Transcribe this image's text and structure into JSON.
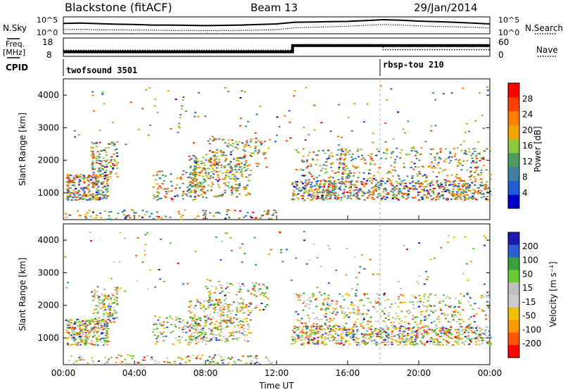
{
  "header": {
    "station": "Blackstone (fitACF)",
    "beam": "Beam 13",
    "date": "29/Jan/2014"
  },
  "left_labels": {
    "nsky": "N.Sky",
    "freq_line1": "Freq.",
    "freq_line2": "[MHz]",
    "cpid": "CPID"
  },
  "right_labels": {
    "nsearch": "N.Search",
    "nave": "Nave"
  },
  "cpid_segments": [
    "twofsound 3501",
    "rbsp-tou 210"
  ],
  "colors": {
    "power_scale": [
      "#0000cc",
      "#1f5fd6",
      "#3f7fa0",
      "#4e9a60",
      "#8ec63f",
      "#f2a400",
      "#ff7d00",
      "#ff4000",
      "#ff0000"
    ],
    "velocity_scale": [
      "#1a1ab0",
      "#2b5fd0",
      "#3aa03a",
      "#66cc33",
      "#bfbfbf",
      "#cccccc",
      "#f0c000",
      "#ff9900",
      "#ff5500",
      "#ff0000"
    ]
  },
  "chart_data": [
    {
      "type": "line",
      "panel": "noise",
      "y_left_ticks": [
        "10^5",
        "10^0"
      ],
      "y_right_ticks": [
        "10^5",
        "10^0"
      ],
      "series": [
        {
          "name": "N.Sky",
          "style": "solid",
          "x_hours": [
            0,
            1,
            2,
            3,
            4,
            5,
            6,
            7,
            8,
            9,
            10,
            11,
            12,
            13,
            14,
            15,
            16,
            17,
            18,
            19,
            20,
            21,
            22,
            23,
            24
          ],
          "values_log10": [
            3.2,
            3.3,
            3.1,
            2.9,
            2.8,
            2.6,
            2.6,
            2.5,
            2.4,
            2.5,
            2.6,
            2.8,
            3.0,
            3.6,
            3.7,
            3.8,
            3.9,
            4.2,
            4.5,
            4.3,
            4.0,
            3.8,
            3.6,
            3.3,
            3.0
          ]
        },
        {
          "name": "N.Search",
          "style": "dotted",
          "x_hours": [
            0,
            1,
            2,
            3,
            4,
            5,
            6,
            7,
            8,
            9,
            10,
            11,
            12,
            13,
            14,
            15,
            16,
            17,
            18,
            19,
            20,
            21,
            22,
            23,
            24
          ],
          "values_log10": [
            1.0,
            1.1,
            0.9,
            0.9,
            0.8,
            0.8,
            0.7,
            0.7,
            0.6,
            0.7,
            0.7,
            0.8,
            1.0,
            1.6,
            1.8,
            2.0,
            2.2,
            2.5,
            2.8,
            2.6,
            2.3,
            2.1,
            2.0,
            1.8,
            1.5
          ]
        }
      ]
    },
    {
      "type": "line",
      "panel": "frequency",
      "y_left_ticks": [
        "18",
        "8"
      ],
      "y_right_ticks": [
        "60",
        "0"
      ],
      "series": [
        {
          "name": "Freq.",
          "style": "solid",
          "x_hours": [
            0,
            12.9,
            12.9,
            18,
            24
          ],
          "values_mhz": [
            10,
            10,
            14,
            14,
            14
          ]
        },
        {
          "name": "Nave",
          "style": "dotted",
          "x_hours": [
            0,
            12.9,
            12.9,
            18,
            18,
            24
          ],
          "values": [
            18,
            18,
            40,
            40,
            20,
            20
          ]
        }
      ]
    },
    {
      "type": "heatmap",
      "panel": "power",
      "xlabel": "",
      "ylabel": "Slant Range [km]",
      "ylim": [
        180,
        4500
      ],
      "y_ticks": [
        1000,
        2000,
        3000,
        4000
      ],
      "colorbar_label": "Power [dB]",
      "colorbar_ticks": [
        4,
        8,
        12,
        16,
        20,
        24,
        28
      ]
    },
    {
      "type": "heatmap",
      "panel": "velocity",
      "xlabel": "Time UT",
      "ylabel": "Slant Range [km]",
      "ylim": [
        180,
        4500
      ],
      "y_ticks": [
        1000,
        2000,
        3000,
        4000
      ],
      "x_ticks": [
        "00:00",
        "04:00",
        "08:00",
        "12:00",
        "16:00",
        "20:00",
        "00:00"
      ],
      "colorbar_label": "Velocity [m s⁻¹]",
      "colorbar_ticks": [
        200,
        100,
        50,
        15,
        -15,
        -50,
        -100,
        -200
      ]
    }
  ]
}
